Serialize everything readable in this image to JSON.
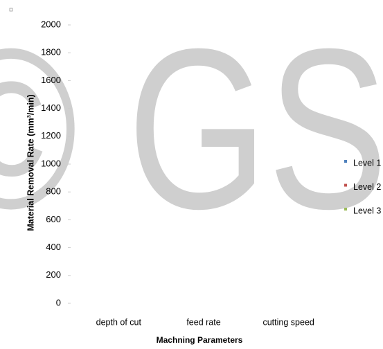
{
  "chart_data": {
    "type": "bar",
    "watermark": "© GS",
    "x_label": "Machning Parameters",
    "y_label": "Material Removal Rate (mm³/min)",
    "categories": [
      "depth of cut",
      "feed rate",
      "cutting speed"
    ],
    "series": [
      {
        "name": "Level 1",
        "color": "#4f81bd",
        "values": [
          null,
          null,
          null
        ]
      },
      {
        "name": "Level 2",
        "color": "#c0504d",
        "values": [
          null,
          null,
          null
        ]
      },
      {
        "name": "Level 3",
        "color": "#9bbb59",
        "values": [
          null,
          null,
          null
        ]
      }
    ],
    "ylim": [
      0,
      2000
    ],
    "yticks": [
      0,
      200,
      400,
      600,
      800,
      1000,
      1200,
      1400,
      1600,
      1800,
      2000
    ],
    "legend": "right"
  }
}
